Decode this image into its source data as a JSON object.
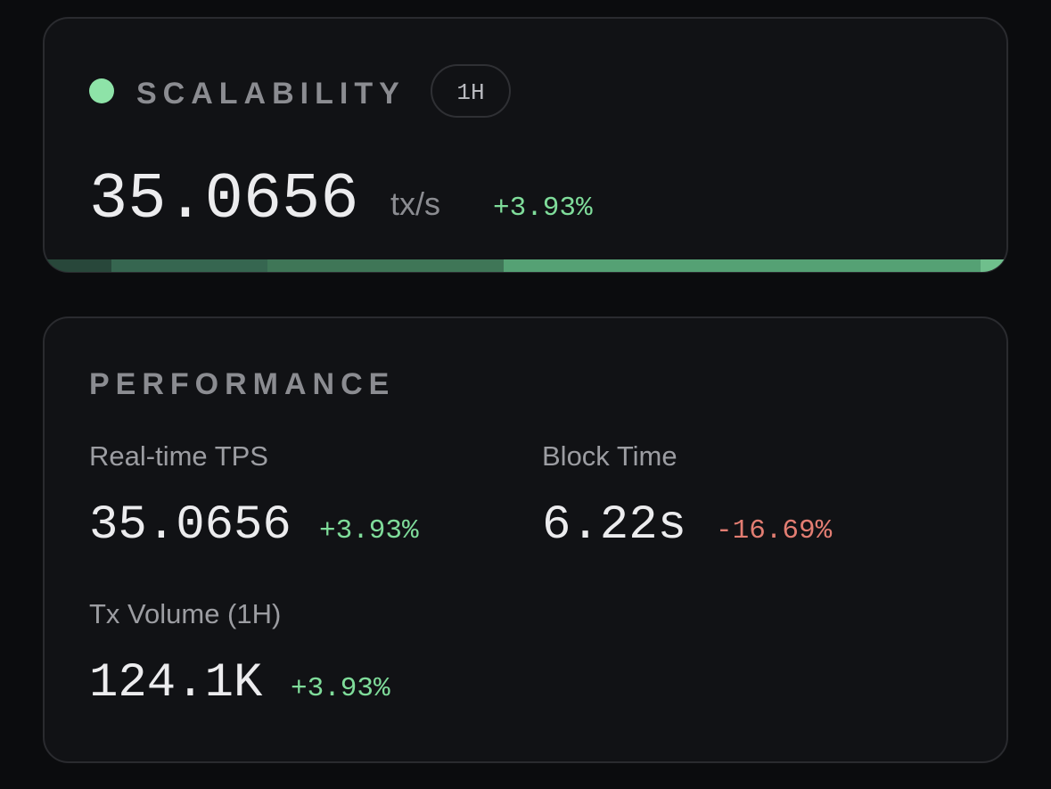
{
  "scalability": {
    "title": "SCALABILITY",
    "range": "1H",
    "value": "35.0656",
    "unit": "tx/s",
    "change": "+3.93%"
  },
  "performance": {
    "title": "PERFORMANCE",
    "metrics": [
      {
        "label": "Real-time TPS",
        "value": "35.0656",
        "change": "+3.93%"
      },
      {
        "label": "Block Time",
        "value": "6.22s",
        "change": "-16.69%"
      },
      {
        "label": "Tx Volume (1H)",
        "value": "124.1K",
        "change": "+3.93%"
      }
    ]
  }
}
